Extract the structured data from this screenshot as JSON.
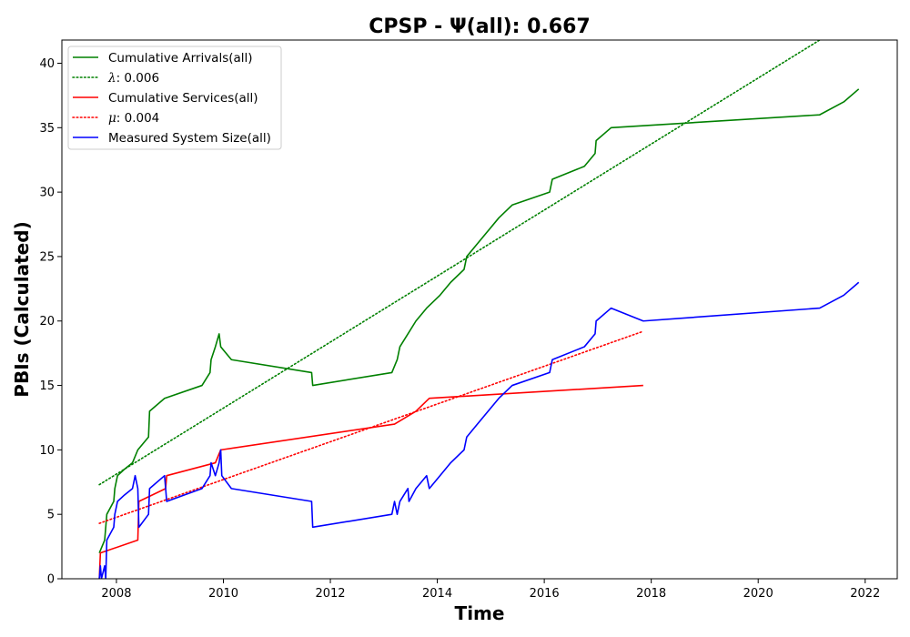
{
  "chart_data": {
    "type": "line",
    "title": "CPSP -  Ψ(all): 0.667",
    "xlabel": "Time",
    "ylabel": "PBIs (Calculated)",
    "xlim": [
      2006.98,
      2022.6
    ],
    "ylim": [
      0,
      41.8
    ],
    "x_ticks": [
      2008,
      2010,
      2012,
      2014,
      2016,
      2018,
      2020,
      2022
    ],
    "y_ticks": [
      0,
      5,
      10,
      15,
      20,
      25,
      30,
      35,
      40
    ],
    "x_tick_labels": [
      "2008",
      "2010",
      "2012",
      "2014",
      "2016",
      "2018",
      "2020",
      "2022"
    ],
    "y_tick_labels": [
      "0",
      "5",
      "10",
      "15",
      "20",
      "25",
      "30",
      "35",
      "40"
    ],
    "grid": false,
    "legend_position": "top-left",
    "series": [
      {
        "name": "Cumulative Arrivals(all)",
        "legend_prefix": "",
        "legend_value": "",
        "style": "solid",
        "color": "#008000",
        "points": [
          [
            2007.68,
            2
          ],
          [
            2007.78,
            3
          ],
          [
            2007.82,
            5
          ],
          [
            2007.95,
            6
          ],
          [
            2007.97,
            7
          ],
          [
            2008.02,
            8
          ],
          [
            2008.15,
            8.5
          ],
          [
            2008.3,
            9
          ],
          [
            2008.4,
            10
          ],
          [
            2008.6,
            11
          ],
          [
            2008.62,
            13
          ],
          [
            2008.9,
            14
          ],
          [
            2009.6,
            15
          ],
          [
            2009.75,
            16
          ],
          [
            2009.77,
            17
          ],
          [
            2009.85,
            18
          ],
          [
            2009.92,
            19
          ],
          [
            2009.95,
            18
          ],
          [
            2010.15,
            17
          ],
          [
            2011.65,
            16
          ],
          [
            2011.67,
            15
          ],
          [
            2013.15,
            16
          ],
          [
            2013.25,
            17
          ],
          [
            2013.3,
            18
          ],
          [
            2013.45,
            19
          ],
          [
            2013.6,
            20
          ],
          [
            2013.8,
            21
          ],
          [
            2014.05,
            22
          ],
          [
            2014.25,
            23
          ],
          [
            2014.5,
            24
          ],
          [
            2014.55,
            25
          ],
          [
            2014.75,
            26
          ],
          [
            2014.95,
            27
          ],
          [
            2015.15,
            28
          ],
          [
            2015.4,
            29
          ],
          [
            2016.1,
            30
          ],
          [
            2016.15,
            31
          ],
          [
            2016.75,
            32
          ],
          [
            2016.95,
            33
          ],
          [
            2016.97,
            34
          ],
          [
            2017.25,
            35
          ],
          [
            2021.15,
            36
          ],
          [
            2021.6,
            37
          ],
          [
            2021.88,
            38
          ]
        ]
      },
      {
        "name": "",
        "legend_prefix": "λ",
        "legend_value": ": 0.006",
        "style": "dotted",
        "color": "#008000",
        "points": [
          [
            2007.68,
            7.3
          ],
          [
            2021.15,
            41.8
          ]
        ]
      },
      {
        "name": "Cumulative Services(all)",
        "legend_prefix": "",
        "legend_value": "",
        "style": "solid",
        "color": "#ff0000",
        "points": [
          [
            2007.68,
            0
          ],
          [
            2007.7,
            2
          ],
          [
            2008.4,
            3
          ],
          [
            2008.42,
            6
          ],
          [
            2008.92,
            7
          ],
          [
            2008.94,
            8
          ],
          [
            2009.85,
            9
          ],
          [
            2009.95,
            10
          ],
          [
            2013.2,
            12
          ],
          [
            2013.6,
            13
          ],
          [
            2013.85,
            14
          ],
          [
            2017.85,
            15
          ]
        ]
      },
      {
        "name": "",
        "legend_prefix": "μ",
        "legend_value": ": 0.004",
        "style": "dotted",
        "color": "#ff0000",
        "points": [
          [
            2007.68,
            4.3
          ],
          [
            2017.85,
            19.2
          ]
        ]
      },
      {
        "name": "Measured System Size(all)",
        "legend_prefix": "",
        "legend_value": "",
        "style": "solid",
        "color": "#0000ff",
        "points": [
          [
            2007.68,
            0
          ],
          [
            2007.7,
            1
          ],
          [
            2007.72,
            0
          ],
          [
            2007.78,
            1
          ],
          [
            2007.8,
            0
          ],
          [
            2007.82,
            3
          ],
          [
            2007.95,
            4
          ],
          [
            2007.97,
            5
          ],
          [
            2008.02,
            6
          ],
          [
            2008.15,
            6.5
          ],
          [
            2008.3,
            7
          ],
          [
            2008.35,
            8
          ],
          [
            2008.4,
            7
          ],
          [
            2008.42,
            4
          ],
          [
            2008.6,
            5
          ],
          [
            2008.62,
            7
          ],
          [
            2008.9,
            8
          ],
          [
            2008.92,
            7
          ],
          [
            2008.94,
            6
          ],
          [
            2009.6,
            7
          ],
          [
            2009.75,
            8
          ],
          [
            2009.77,
            9
          ],
          [
            2009.85,
            8
          ],
          [
            2009.92,
            9
          ],
          [
            2009.95,
            10
          ],
          [
            2009.97,
            8
          ],
          [
            2010.15,
            7
          ],
          [
            2011.65,
            6
          ],
          [
            2011.67,
            4
          ],
          [
            2013.15,
            5
          ],
          [
            2013.2,
            6
          ],
          [
            2013.25,
            5
          ],
          [
            2013.3,
            6
          ],
          [
            2013.45,
            7
          ],
          [
            2013.47,
            6
          ],
          [
            2013.6,
            7
          ],
          [
            2013.8,
            8
          ],
          [
            2013.85,
            7
          ],
          [
            2014.05,
            8
          ],
          [
            2014.25,
            9
          ],
          [
            2014.5,
            10
          ],
          [
            2014.55,
            11
          ],
          [
            2014.75,
            12
          ],
          [
            2014.95,
            13
          ],
          [
            2015.15,
            14
          ],
          [
            2015.4,
            15
          ],
          [
            2016.1,
            16
          ],
          [
            2016.15,
            17
          ],
          [
            2016.75,
            18
          ],
          [
            2016.95,
            19
          ],
          [
            2016.97,
            20
          ],
          [
            2017.25,
            21
          ],
          [
            2017.85,
            20
          ],
          [
            2021.15,
            21
          ],
          [
            2021.6,
            22
          ],
          [
            2021.88,
            23
          ]
        ]
      }
    ]
  }
}
